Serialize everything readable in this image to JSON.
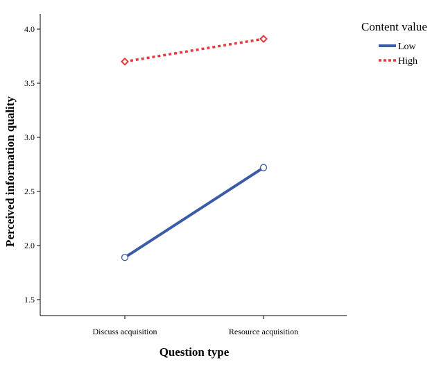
{
  "chart_data": {
    "type": "line",
    "categories": [
      "Discuss acquisition",
      "Resource acquisition"
    ],
    "series": [
      {
        "name": "Low",
        "values": [
          1.89,
          2.72
        ],
        "color": "#3b5ba8",
        "style": "solid",
        "marker": "circle"
      },
      {
        "name": "High",
        "values": [
          3.7,
          3.91
        ],
        "color": "#e8383d",
        "style": "dotted",
        "marker": "diamond"
      }
    ],
    "xlabel": "Question type",
    "ylabel": "Perceived information quality",
    "ylim": [
      1.5,
      4.0
    ],
    "yticks": [
      "1.5",
      "2.0",
      "2.5",
      "3.0",
      "3.5",
      "4.0"
    ],
    "legend": {
      "title": "Content value",
      "placement": "top-right"
    },
    "grid": false
  }
}
